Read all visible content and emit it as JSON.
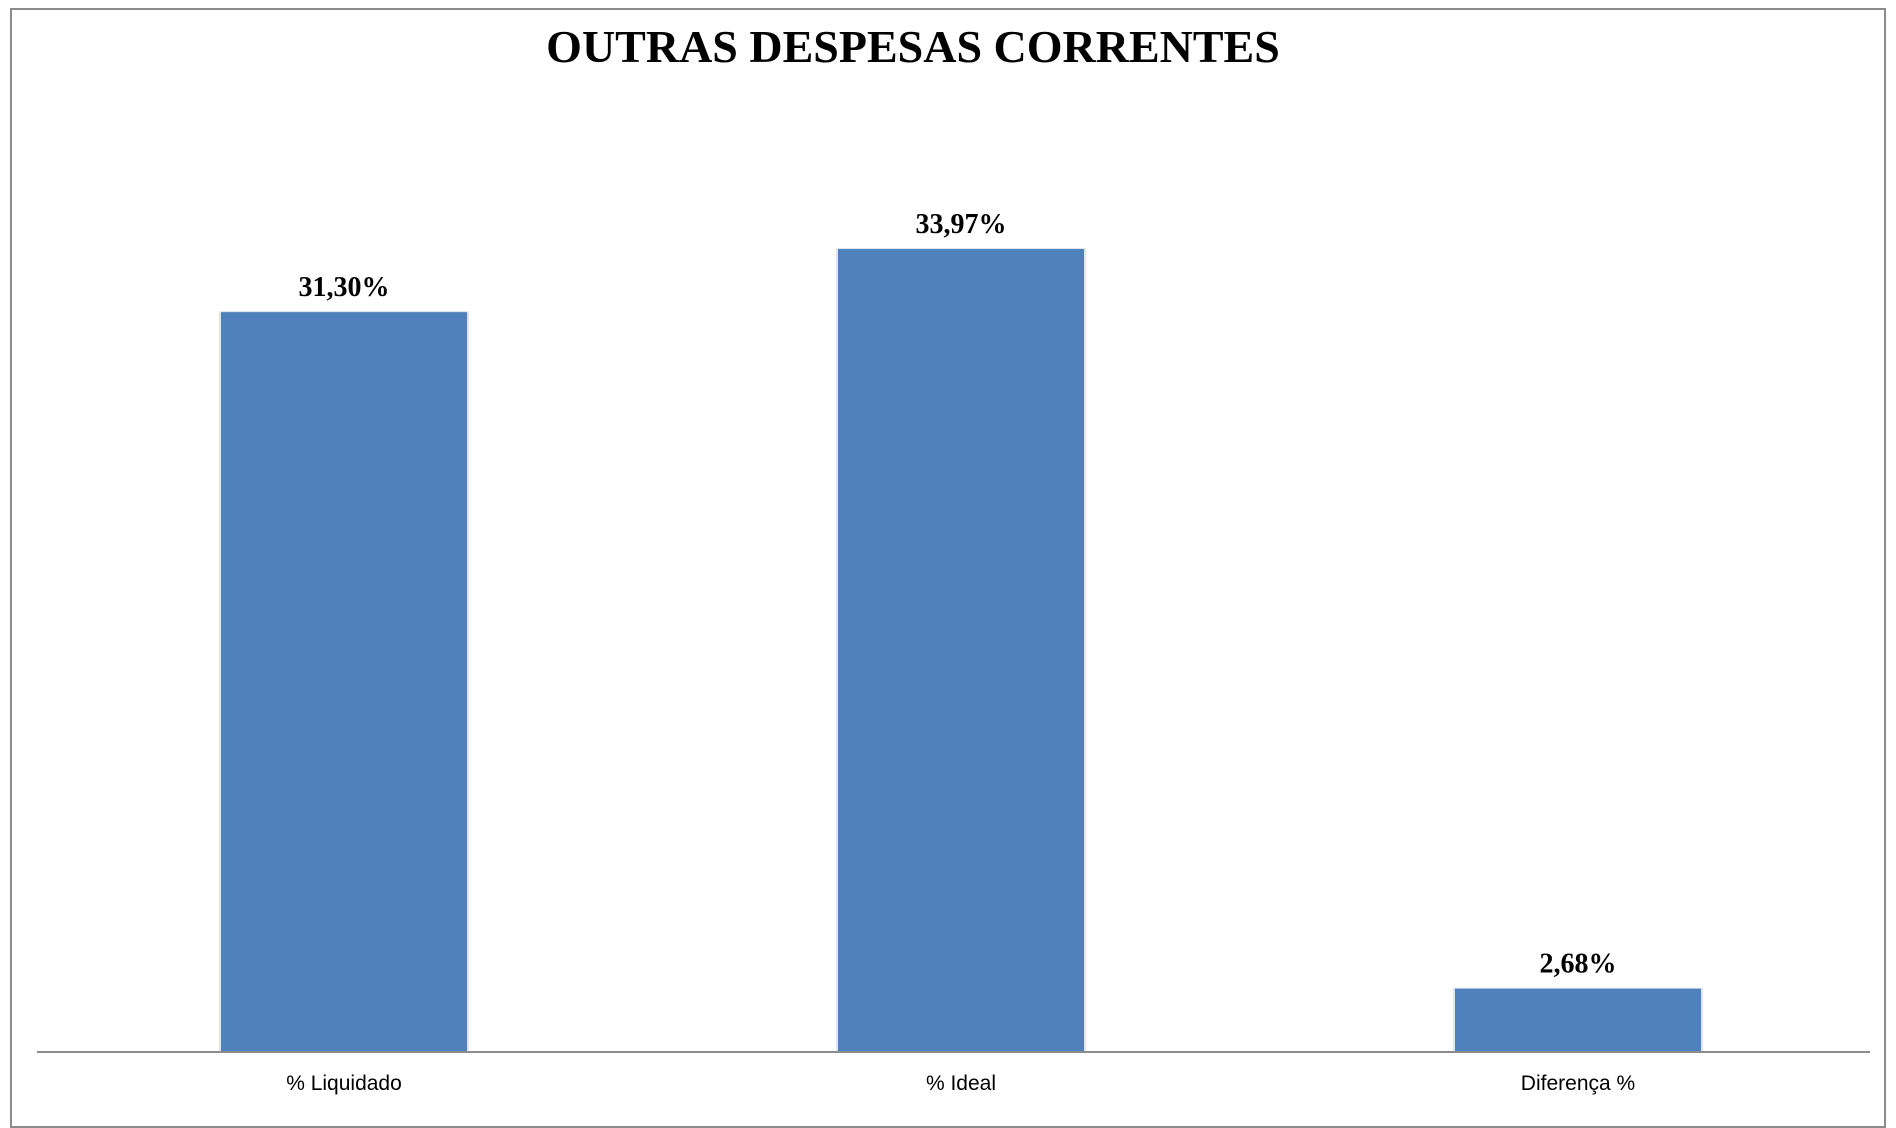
{
  "chart_data": {
    "type": "bar",
    "title": "OUTRAS DESPESAS CORRENTES",
    "categories": [
      "% Liquidado",
      "% Ideal",
      "Diferença %"
    ],
    "values": [
      31.3,
      33.97,
      2.68
    ],
    "value_labels": [
      "31,30%",
      "33,97%",
      "2,68%"
    ],
    "xlabel": "",
    "ylabel": "",
    "ylim": [
      0,
      40
    ],
    "grid": false,
    "legend": "none",
    "bar_color": "#4f81bd"
  }
}
